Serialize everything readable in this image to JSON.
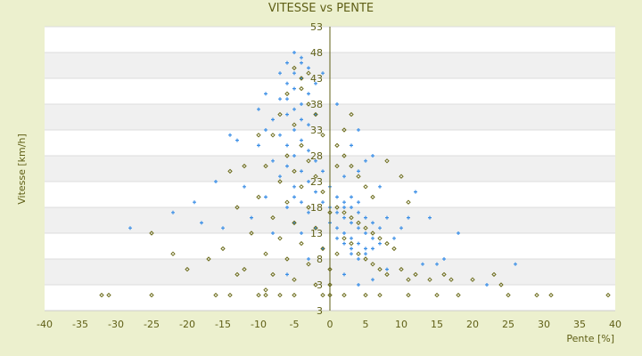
{
  "chart_data": {
    "type": "scatter",
    "title": "VITESSE vs PENTE",
    "xlabel": "Pente [%]",
    "ylabel": "Vitesse [km/h]",
    "xlim": [
      -40,
      40
    ],
    "ylim": [
      -2,
      53
    ],
    "xticks": [
      "-40",
      "-35",
      "-30",
      "-25",
      "-20",
      "-15",
      "-10",
      "-5",
      "0",
      "5",
      "10",
      "15",
      "20",
      "25",
      "30",
      "35",
      "40"
    ],
    "yticks": [
      "53",
      "48",
      "43",
      "38",
      "33",
      "28",
      "23",
      "18",
      "13",
      "8",
      "3",
      "3"
    ],
    "grid": "horizontal bands",
    "legend": "none",
    "colors": {
      "background": "#ecf0ce",
      "band": "#f0f0f0",
      "axis": "#5f5f16"
    },
    "series": [
      {
        "color": "#3a8ee6",
        "marker": "plus",
        "points": [
          [
            -5,
            48
          ],
          [
            -4,
            47
          ],
          [
            -6,
            46
          ],
          [
            -3,
            45
          ],
          [
            -5,
            44
          ],
          [
            -4,
            43
          ],
          [
            -6,
            42
          ],
          [
            -5,
            41
          ],
          [
            -3,
            40
          ],
          [
            -7,
            39
          ],
          [
            -4,
            38
          ],
          [
            -5,
            37
          ],
          [
            -6,
            36
          ],
          [
            -8,
            35
          ],
          [
            -4,
            35
          ],
          [
            -3,
            34
          ],
          [
            -5,
            33
          ],
          [
            -9,
            33
          ],
          [
            -7,
            32
          ],
          [
            -4,
            31
          ],
          [
            -6,
            30
          ],
          [
            -10,
            30
          ],
          [
            -3,
            29
          ],
          [
            -5,
            28
          ],
          [
            -8,
            27
          ],
          [
            -2,
            27
          ],
          [
            -6,
            26
          ],
          [
            -4,
            25
          ],
          [
            -1,
            25
          ],
          [
            -7,
            24
          ],
          [
            -3,
            23
          ],
          [
            -5,
            22
          ],
          [
            0,
            22
          ],
          [
            -2,
            21
          ],
          [
            -9,
            20
          ],
          [
            -4,
            19
          ],
          [
            -1,
            19
          ],
          [
            -6,
            18
          ],
          [
            -3,
            17
          ],
          [
            -11,
            16
          ],
          [
            -5,
            15
          ],
          [
            -2,
            14
          ],
          [
            -8,
            13
          ],
          [
            -13,
            31
          ],
          [
            -14,
            32
          ],
          [
            -16,
            23
          ],
          [
            -19,
            19
          ],
          [
            -22,
            17
          ],
          [
            -28,
            14
          ],
          [
            -15,
            14
          ],
          [
            -18,
            15
          ],
          [
            -12,
            22
          ],
          [
            -10,
            37
          ],
          [
            -9,
            40
          ],
          [
            -2,
            36
          ],
          [
            1,
            38
          ],
          [
            4,
            33
          ],
          [
            3,
            30
          ],
          [
            5,
            27
          ],
          [
            4,
            25
          ],
          [
            2,
            24
          ],
          [
            6,
            28
          ],
          [
            7,
            22
          ],
          [
            1,
            20
          ],
          [
            2,
            19
          ],
          [
            3,
            18
          ],
          [
            4,
            17
          ],
          [
            5,
            16
          ],
          [
            2,
            16
          ],
          [
            3,
            15
          ],
          [
            4,
            14
          ],
          [
            1,
            14
          ],
          [
            5,
            13
          ],
          [
            3,
            12
          ],
          [
            2,
            11
          ],
          [
            6,
            12
          ],
          [
            4,
            11
          ],
          [
            5,
            10
          ],
          [
            3,
            9
          ],
          [
            4,
            8
          ],
          [
            2,
            13
          ],
          [
            6,
            15
          ],
          [
            7,
            14
          ],
          [
            8,
            16
          ],
          [
            6,
            10
          ],
          [
            7,
            11
          ],
          [
            5,
            9
          ],
          [
            3,
            10
          ],
          [
            1,
            17
          ],
          [
            2,
            18
          ],
          [
            4,
            19
          ],
          [
            3,
            20
          ],
          [
            1,
            12
          ],
          [
            0,
            15
          ],
          [
            0,
            18
          ],
          [
            9,
            12
          ],
          [
            10,
            14
          ],
          [
            12,
            21
          ],
          [
            11,
            16
          ],
          [
            14,
            16
          ],
          [
            18,
            13
          ],
          [
            15,
            7
          ],
          [
            16,
            8
          ],
          [
            13,
            7
          ],
          [
            22,
            3
          ],
          [
            26,
            7
          ],
          [
            8,
            6
          ],
          [
            6,
            4
          ],
          [
            4,
            3
          ],
          [
            2,
            5
          ],
          [
            -1,
            10
          ],
          [
            -3,
            8
          ],
          [
            -6,
            5
          ],
          [
            -4,
            13
          ],
          [
            -5,
            20
          ],
          [
            -6,
            39
          ],
          [
            -4,
            46
          ],
          [
            -7,
            44
          ],
          [
            -2,
            42
          ],
          [
            -1,
            44
          ]
        ]
      },
      {
        "color": "#6b6b1a",
        "marker": "diamond",
        "points": [
          [
            -5,
            45
          ],
          [
            -4,
            43
          ],
          [
            -6,
            40
          ],
          [
            -3,
            38
          ],
          [
            -7,
            36
          ],
          [
            -5,
            34
          ],
          [
            -8,
            32
          ],
          [
            -4,
            30
          ],
          [
            -6,
            28
          ],
          [
            -3,
            27
          ],
          [
            -9,
            26
          ],
          [
            -5,
            25
          ],
          [
            -2,
            24
          ],
          [
            -7,
            23
          ],
          [
            -4,
            22
          ],
          [
            -1,
            21
          ],
          [
            -10,
            20
          ],
          [
            -6,
            19
          ],
          [
            -3,
            18
          ],
          [
            0,
            17
          ],
          [
            -8,
            16
          ],
          [
            -5,
            15
          ],
          [
            -2,
            14
          ],
          [
            -11,
            13
          ],
          [
            -7,
            12
          ],
          [
            -4,
            11
          ],
          [
            -1,
            10
          ],
          [
            -9,
            9
          ],
          [
            -6,
            8
          ],
          [
            -3,
            7
          ],
          [
            -12,
            6
          ],
          [
            -8,
            5
          ],
          [
            -5,
            4
          ],
          [
            -2,
            3
          ],
          [
            -15,
            10
          ],
          [
            -17,
            8
          ],
          [
            -20,
            6
          ],
          [
            -22,
            9
          ],
          [
            -25,
            13
          ],
          [
            -13,
            18
          ],
          [
            -12,
            26
          ],
          [
            -14,
            25
          ],
          [
            -10,
            32
          ],
          [
            -13,
            5
          ],
          [
            -9,
            2
          ],
          [
            1,
            30
          ],
          [
            2,
            28
          ],
          [
            3,
            26
          ],
          [
            4,
            24
          ],
          [
            5,
            22
          ],
          [
            6,
            20
          ],
          [
            1,
            18
          ],
          [
            2,
            17
          ],
          [
            3,
            16
          ],
          [
            4,
            15
          ],
          [
            5,
            14
          ],
          [
            6,
            13
          ],
          [
            7,
            12
          ],
          [
            8,
            11
          ],
          [
            9,
            10
          ],
          [
            3,
            11
          ],
          [
            4,
            9
          ],
          [
            5,
            8
          ],
          [
            6,
            7
          ],
          [
            7,
            6
          ],
          [
            8,
            5
          ],
          [
            10,
            6
          ],
          [
            12,
            5
          ],
          [
            11,
            4
          ],
          [
            14,
            4
          ],
          [
            16,
            5
          ],
          [
            17,
            4
          ],
          [
            20,
            4
          ],
          [
            23,
            5
          ],
          [
            24,
            3
          ],
          [
            2,
            12
          ],
          [
            1,
            9
          ],
          [
            0,
            6
          ],
          [
            0,
            3
          ],
          [
            1,
            26
          ],
          [
            2,
            33
          ],
          [
            3,
            36
          ],
          [
            8,
            27
          ],
          [
            10,
            24
          ],
          [
            11,
            19
          ],
          [
            -1,
            32
          ],
          [
            -2,
            36
          ],
          [
            -4,
            41
          ],
          [
            -3,
            44
          ],
          [
            -32,
            1
          ],
          [
            -31,
            1
          ],
          [
            -25,
            1
          ],
          [
            -16,
            1
          ],
          [
            -14,
            1
          ],
          [
            -10,
            1
          ],
          [
            -9,
            1
          ],
          [
            -7,
            1
          ],
          [
            -5,
            1
          ],
          [
            -1,
            1
          ],
          [
            2,
            1
          ],
          [
            5,
            1
          ],
          [
            7,
            1
          ],
          [
            11,
            1
          ],
          [
            15,
            1
          ],
          [
            18,
            1
          ],
          [
            25,
            1
          ],
          [
            29,
            1
          ],
          [
            31,
            1
          ],
          [
            39,
            1
          ],
          [
            0,
            1
          ]
        ]
      }
    ]
  }
}
